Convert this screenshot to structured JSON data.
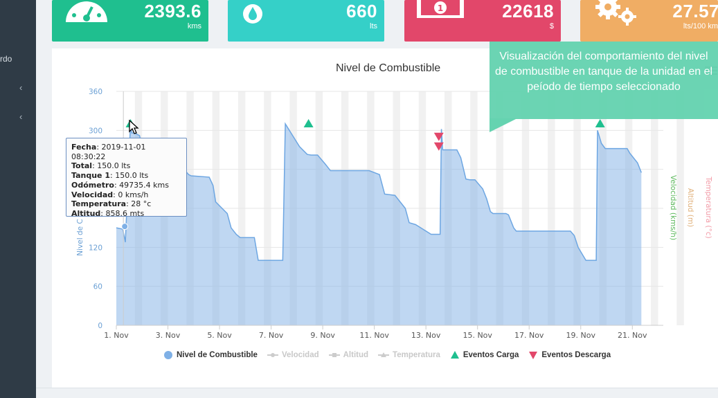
{
  "sidebar": {
    "partial_label": "rdo"
  },
  "cards": [
    {
      "value": "2393.6",
      "unit": "kms",
      "color": "#1fbf8f",
      "icon": "speedometer-icon"
    },
    {
      "value": "660",
      "unit": "lts",
      "color": "#35d0c8",
      "icon": "fuel-drop-icon"
    },
    {
      "value": "22618",
      "unit": "$",
      "color": "#e2476a",
      "icon": "money-icon"
    },
    {
      "value": "27.57",
      "unit": "lts/100 km",
      "color": "#f0ad64",
      "icon": "gears-icon"
    }
  ],
  "chart_title": "Nivel de Combustible",
  "callout_text": "Visualización del comportamiento del nivel de combustible en tanque de la unidad en el peíodo de tiempo seleccionado",
  "tooltip": {
    "fecha_label": "Fecha",
    "fecha": "2019-11-01 08:30:22",
    "total_label": "Total",
    "total": "150.0 lts",
    "tanque_label": "Tanque 1",
    "tanque": "150.0 lts",
    "odometro_label": "Odómetro",
    "odometro": "49735.4 kms",
    "velocidad_label": "Velocidad",
    "velocidad": "0 kms/h",
    "temperatura_label": "Temperatura",
    "temperatura": "28 °c",
    "altitud_label": "Altitud",
    "altitud": "858.6 mts"
  },
  "legend": [
    {
      "label": "Nivel de Combustible",
      "active": true,
      "symbol": "circle",
      "color": "#7fb0e6"
    },
    {
      "label": "Velocidad",
      "active": false,
      "symbol": "line-dot",
      "color": "#cccccc"
    },
    {
      "label": "Altitud",
      "active": false,
      "symbol": "line-square",
      "color": "#cccccc"
    },
    {
      "label": "Temperatura",
      "active": false,
      "symbol": "line-triangle",
      "color": "#cccccc"
    },
    {
      "label": "Eventos Carga",
      "active": true,
      "symbol": "triangle-up",
      "color": "#1fbf8f"
    },
    {
      "label": "Eventos Descarga",
      "active": true,
      "symbol": "triangle-down",
      "color": "#e2476a"
    }
  ],
  "chart_data": {
    "type": "area",
    "title": "Nivel de Combustible",
    "ylabel": "Nivel de C",
    "right_axis_labels": [
      "Velocidad (kms/h)",
      "Altitud (m)",
      "Temperatura (°c)"
    ],
    "ylim": [
      0,
      360
    ],
    "yticks": [
      0,
      60,
      120,
      180,
      240,
      300,
      360
    ],
    "xlim": [
      1,
      22.2
    ],
    "xticks": [
      1,
      3,
      5,
      7,
      9,
      11,
      13,
      15,
      17,
      19,
      21
    ],
    "xtick_labels": [
      "1. Nov",
      "3. Nov",
      "5. Nov",
      "7. Nov",
      "9. Nov",
      "11. Nov",
      "13. Nov",
      "15. Nov",
      "17. Nov",
      "19. Nov",
      "21. Nov"
    ],
    "series": [
      {
        "name": "Nivel de Combustible",
        "color": "#7fb0e6",
        "x": [
          1.0,
          1.25,
          1.35,
          1.55,
          1.6,
          1.7,
          1.9,
          2.15,
          2.5,
          2.65,
          3.1,
          3.4,
          3.8,
          3.9,
          4.6,
          4.75,
          4.85,
          5.3,
          5.45,
          5.65,
          5.8,
          6.0,
          6.35,
          6.5,
          7.0,
          7.45,
          7.55,
          8.1,
          8.35,
          8.4,
          8.55,
          8.8,
          9.1,
          9.3,
          9.5,
          10.1,
          10.8,
          11.2,
          11.4,
          11.8,
          12.2,
          12.35,
          12.6,
          12.8,
          13.2,
          13.55,
          13.6,
          13.65,
          14.2,
          14.35,
          14.55,
          14.7,
          14.9,
          15.2,
          15.35,
          15.5,
          15.6,
          16.1,
          16.2,
          16.4,
          16.5,
          17.0,
          18.0,
          18.6,
          18.75,
          18.9,
          19.2,
          19.6,
          19.65,
          19.8,
          19.95,
          20.2,
          20.5,
          20.8,
          20.9,
          21.2,
          21.35
        ],
        "y": [
          150,
          148,
          128,
          310,
          296,
          296,
          292,
          250,
          250,
          250,
          250,
          250,
          232,
          230,
          228,
          215,
          190,
          172,
          150,
          140,
          135,
          135,
          135,
          100,
          100,
          100,
          310,
          275,
          265,
          263,
          262,
          262,
          248,
          238,
          238,
          238,
          238,
          232,
          202,
          200,
          180,
          158,
          155,
          150,
          140,
          140,
          302,
          270,
          270,
          258,
          225,
          224,
          224,
          210,
          195,
          175,
          172,
          172,
          170,
          150,
          145,
          145,
          145,
          145,
          138,
          120,
          100,
          100,
          300,
          280,
          272,
          272,
          272,
          272,
          265,
          250,
          235
        ]
      }
    ],
    "events_carga": [
      {
        "x": 1.55,
        "y": 310
      },
      {
        "x": 8.45,
        "y": 310
      },
      {
        "x": 19.75,
        "y": 310
      }
    ],
    "events_descarga": [
      {
        "x": 13.5,
        "y": 290
      },
      {
        "x": 13.5,
        "y": 275
      }
    ],
    "tooltip_point": {
      "x": 1.3,
      "y": 150
    },
    "grid": true
  }
}
